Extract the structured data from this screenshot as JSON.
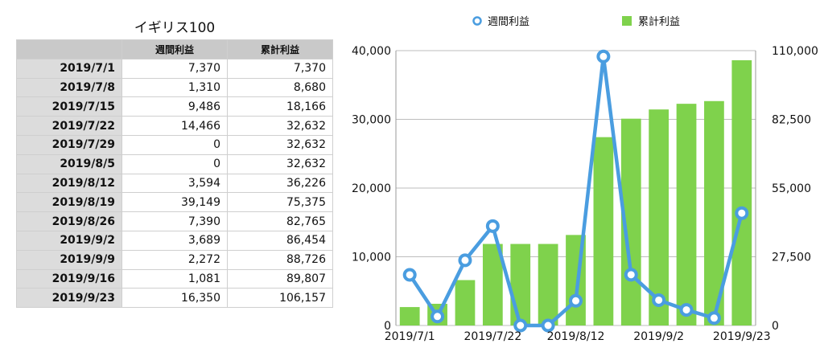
{
  "table": {
    "title": "イギリス100",
    "headers": [
      "",
      "週間利益",
      "累計利益"
    ],
    "rows": [
      {
        "date": "2019/7/1",
        "weekly": "7,370",
        "cumulative": "7,370"
      },
      {
        "date": "2019/7/8",
        "weekly": "1,310",
        "cumulative": "8,680"
      },
      {
        "date": "2019/7/15",
        "weekly": "9,486",
        "cumulative": "18,166"
      },
      {
        "date": "2019/7/22",
        "weekly": "14,466",
        "cumulative": "32,632"
      },
      {
        "date": "2019/7/29",
        "weekly": "0",
        "cumulative": "32,632"
      },
      {
        "date": "2019/8/5",
        "weekly": "0",
        "cumulative": "32,632"
      },
      {
        "date": "2019/8/12",
        "weekly": "3,594",
        "cumulative": "36,226"
      },
      {
        "date": "2019/8/19",
        "weekly": "39,149",
        "cumulative": "75,375"
      },
      {
        "date": "2019/8/26",
        "weekly": "7,390",
        "cumulative": "82,765"
      },
      {
        "date": "2019/9/2",
        "weekly": "3,689",
        "cumulative": "86,454"
      },
      {
        "date": "2019/9/9",
        "weekly": "2,272",
        "cumulative": "88,726"
      },
      {
        "date": "2019/9/16",
        "weekly": "1,081",
        "cumulative": "89,807"
      },
      {
        "date": "2019/9/23",
        "weekly": "16,350",
        "cumulative": "106,157"
      }
    ]
  },
  "chart_data": {
    "type": "bar",
    "categories": [
      "2019/7/1",
      "2019/7/8",
      "2019/7/15",
      "2019/7/22",
      "2019/7/29",
      "2019/8/5",
      "2019/8/12",
      "2019/8/19",
      "2019/8/26",
      "2019/9/2",
      "2019/9/9",
      "2019/9/16",
      "2019/9/23"
    ],
    "x_tick_labels": [
      "2019/7/1",
      "2019/7/22",
      "2019/8/12",
      "2019/9/2",
      "2019/9/23"
    ],
    "series": [
      {
        "name": "週間利益",
        "type": "line",
        "axis": "left",
        "values": [
          7370,
          1310,
          9486,
          14466,
          0,
          0,
          3594,
          39149,
          7390,
          3689,
          2272,
          1081,
          16350
        ],
        "color": "#4a9de0"
      },
      {
        "name": "累計利益",
        "type": "bar",
        "axis": "right",
        "values": [
          7370,
          8680,
          18166,
          32632,
          32632,
          32632,
          36226,
          75375,
          82765,
          86454,
          88726,
          89807,
          106157
        ],
        "color": "#7fd24c"
      }
    ],
    "y_left": {
      "range": [
        0,
        40000
      ],
      "ticks": [
        "0",
        "10,000",
        "20,000",
        "30,000",
        "40,000"
      ],
      "tick_values": [
        0,
        10000,
        20000,
        30000,
        40000
      ]
    },
    "y_right": {
      "range": [
        0,
        110000
      ],
      "ticks": [
        "0",
        "27,500",
        "55,000",
        "82,500",
        "110,000"
      ],
      "tick_values": [
        0,
        27500,
        55000,
        82500,
        110000
      ]
    },
    "grid": true,
    "legend": "top"
  }
}
